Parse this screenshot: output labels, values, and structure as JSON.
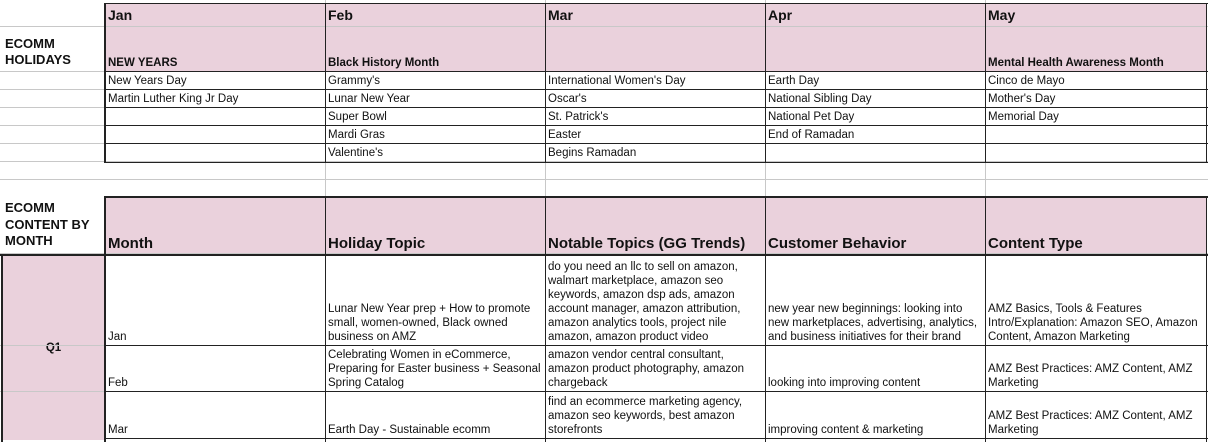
{
  "months": [
    "Jan",
    "Feb",
    "Mar",
    "Apr",
    "May"
  ],
  "holidays_section": {
    "label": "ECOMM HOLIDAYS",
    "themes": [
      "NEW YEARS",
      "Black History Month",
      "",
      "",
      "Mental Health Awareness Month"
    ],
    "rows": [
      [
        "New Years Day",
        "Grammy's",
        "International Women's Day",
        "Earth Day",
        "Cinco de Mayo"
      ],
      [
        "Martin Luther King Jr Day",
        "Lunar New Year",
        "Oscar's",
        "National Sibling Day",
        "Mother's Day"
      ],
      [
        "",
        "Super Bowl",
        "St. Patrick's",
        "National Pet Day",
        "Memorial Day"
      ],
      [
        "",
        "Mardi Gras",
        "Easter",
        "End of Ramadan",
        ""
      ],
      [
        "",
        "Valentine's",
        "Begins Ramadan",
        "",
        ""
      ]
    ]
  },
  "content_section": {
    "label": "ECOMM CONTENT BY MONTH",
    "headers": [
      "Month",
      "Holiday Topic",
      "Notable Topics (GG Trends)",
      "Customer Behavior",
      "Content Type"
    ],
    "quarter": "Q1",
    "rows": [
      {
        "month": "Jan",
        "holiday_topic": "Lunar New Year prep + How to promote small, women-owned, Black owned business on AMZ",
        "notable_topics": "do you need an llc to sell on amazon, walmart marketplace, amazon seo keywords, amazon dsp ads, amazon account manager, amazon attribution, amazon analytics tools, project nile amazon, amazon product video",
        "customer_behavior": "new year new beginnings: looking into new marketplaces, advertising, analytics, and business initiatives for their brand",
        "content_type": "AMZ Basics, Tools & Features Intro/Explanation: Amazon SEO, Amazon Content, Amazon Marketing"
      },
      {
        "month": "Feb",
        "holiday_topic": "Celebrating Women in eCommerce, Preparing for Easter business + Seasonal Spring Catalog",
        "notable_topics": "amazon vendor central consultant, amazon product photography, amazon chargeback",
        "customer_behavior": "looking into improving content",
        "content_type": "AMZ Best Practices: AMZ Content, AMZ Marketing"
      },
      {
        "month": "Mar",
        "holiday_topic": "Earth Day - Sustainable ecomm",
        "notable_topics": "find an ecommerce marketing agency, amazon seo keywords, best amazon storefronts",
        "customer_behavior": "improving content & marketing",
        "content_type": "AMZ Best Practices: AMZ Content, AMZ Marketing"
      }
    ]
  }
}
